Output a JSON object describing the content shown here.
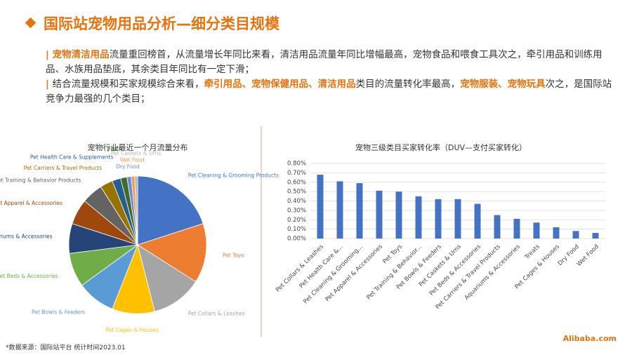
{
  "header": {
    "title": "国际站宠物用品分析—细分类目规模"
  },
  "paragraphs": [
    [
      {
        "text": "| 宠物清洁用品",
        "bold": true
      },
      {
        "text": "流量重回榜首，从流量增长年同比来看，清洁用品流量年同比增幅最高，宠物食品和喂食工具次之，牵引用品和训练用品、水族用品垫底，其余类目年同比有一定下滑；",
        "bold": false
      }
    ],
    [
      {
        "text": "| ",
        "bold": true
      },
      {
        "text": "结合流量规模和买家规模综合来看，",
        "bold": false
      },
      {
        "text": "牵引用品、宠物保健用品、清洁用品",
        "bold": true
      },
      {
        "text": "类目的流量转化率最高，",
        "bold": false
      },
      {
        "text": "宠物服装、宠物玩具",
        "bold": true
      },
      {
        "text": "次之，是国际站竞争力最强的几个类目；",
        "bold": false
      }
    ]
  ],
  "footer": {
    "source": "*数据来源：国际站平台 统计时间2023.01",
    "brand": "Alibaba.com"
  },
  "chart_data": [
    {
      "type": "pie",
      "title": "宠物行业最近一个月流量分布",
      "categories": [
        "Pet Cleaning & Grooming Products",
        "Pet Toys",
        "Pet Collars & Leashes",
        "Pet Cages & Houses",
        "Pet Bowls & Feeders",
        "Pet Beds & Accessories",
        "Aquariums & Accessories",
        "Pet Apparel & Accessories",
        "Pet Training & Behavior Products",
        "Pet Carriers & Travel Products",
        "Pet Health Care & Supplements",
        "Treats",
        "Dry Food",
        "Wet Food",
        "Pet Caskets & Urns"
      ],
      "values": [
        20,
        14,
        12,
        10,
        9,
        8,
        7,
        6,
        5,
        3,
        2,
        1.5,
        1,
        0.8,
        0.7
      ],
      "colors": [
        "#4472c4",
        "#ed7d31",
        "#a5a5a5",
        "#ffc000",
        "#5b9bd5",
        "#70ad47",
        "#264478",
        "#9e480e",
        "#636363",
        "#997300",
        "#255e91",
        "#43682b",
        "#698ed0",
        "#f1975a",
        "#b7b7b7"
      ]
    },
    {
      "type": "bar",
      "title": "宠物三级类目买家转化率（DUV—支付买家转化）",
      "categories": [
        "Pet Collars & Leashes",
        "Pet Health Care &...",
        "Pet Cleaning & Grooming...",
        "Pet Apparel & Accessories",
        "Pet Toys",
        "Pet Training & Behavior...",
        "Pet Bowls & Feeders",
        "Pet Caskets & Urns",
        "Pet Beds & Accessories",
        "Pet Carriers & Travel Products",
        "Aquariums & Accessories",
        "Treats",
        "Pet Cages & Houses",
        "Dry Food",
        "Wet Food"
      ],
      "series": [
        {
          "name": "转化率",
          "color": "#4472c4",
          "values": [
            0.68,
            0.61,
            0.59,
            0.51,
            0.5,
            0.45,
            0.42,
            0.42,
            0.37,
            0.25,
            0.21,
            0.17,
            0.12,
            0.08,
            0.06
          ]
        }
      ],
      "ylim": [
        0,
        0.8
      ],
      "yticks": [
        {
          "value": 0,
          "label": "0.00%"
        },
        {
          "value": 0.1,
          "label": "0.10%"
        },
        {
          "value": 0.2,
          "label": "0.20%"
        },
        {
          "value": 0.3,
          "label": "0.30%"
        },
        {
          "value": 0.4,
          "label": "0.40%"
        },
        {
          "value": 0.5,
          "label": "0.50%"
        },
        {
          "value": 0.6,
          "label": "0.60%"
        },
        {
          "value": 0.7,
          "label": "0.70%"
        },
        {
          "value": 0.8,
          "label": "0.80%"
        }
      ],
      "grid": true
    }
  ]
}
